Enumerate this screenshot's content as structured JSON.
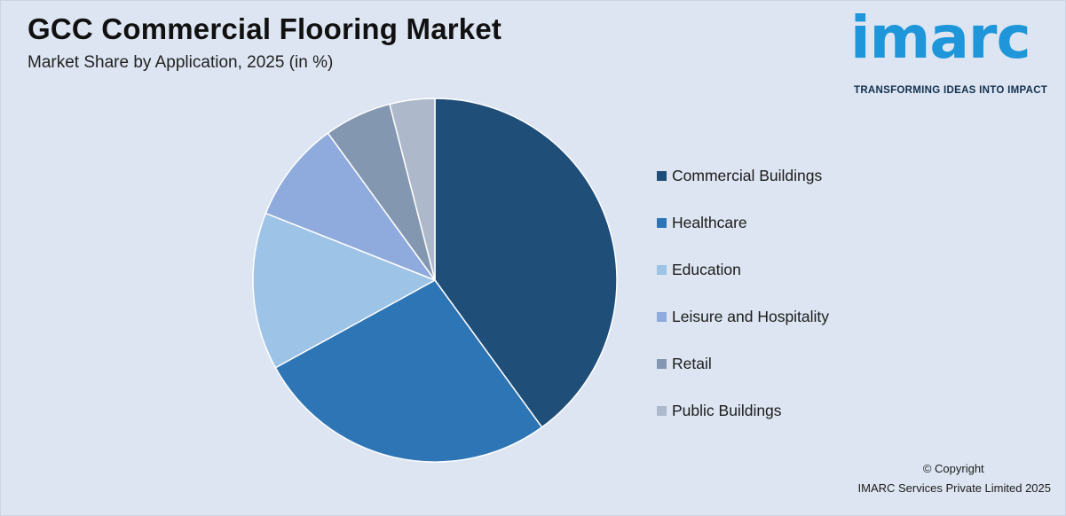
{
  "header": {
    "title": "GCC Commercial Flooring Market",
    "subtitle": "Market Share by Application, 2025 (in %)"
  },
  "logo": {
    "text": "imarc",
    "tagline": "TRANSFORMING IDEAS INTO IMPACT"
  },
  "footer": {
    "copyright": "© Copyright",
    "company": "IMARC Services Private Limited 2025"
  },
  "chart_data": {
    "type": "pie",
    "title": "GCC Commercial Flooring Market",
    "subtitle": "Market Share by Application, 2025 (in %)",
    "legend_position": "right",
    "start_angle": "12 o'clock",
    "direction": "clockwise",
    "categories": [
      "Commercial Buildings",
      "Healthcare",
      "Education",
      "Leisure and Hospitality",
      "Retail",
      "Public Buildings"
    ],
    "values": [
      40,
      27,
      14,
      9,
      6,
      4
    ],
    "colors": [
      "#1f4e79",
      "#2e75b6",
      "#9dc3e6",
      "#8faadc",
      "#8497b0",
      "#adb9ca"
    ]
  }
}
